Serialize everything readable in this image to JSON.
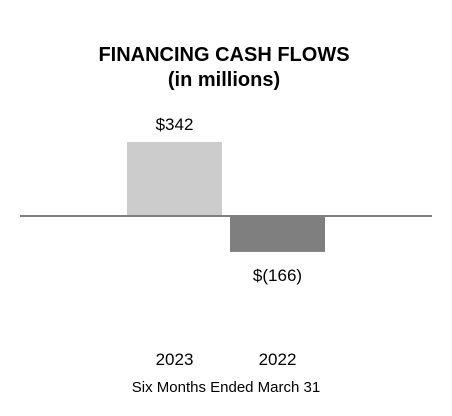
{
  "chart_data": {
    "type": "bar",
    "title": "FINANCING CASH FLOWS",
    "subtitle": "(in millions)",
    "categories": [
      "2023",
      "2022"
    ],
    "values": [
      342,
      -166
    ],
    "data_labels": [
      "$342",
      "$(166)"
    ],
    "xlabel": "Six Months Ended March 31",
    "ylabel": "",
    "ylim": [
      -166,
      342
    ],
    "grid": false,
    "legend": "none",
    "colors": {
      "positive_bar": "#cccccc",
      "negative_bar": "#7f7f7f",
      "baseline": "#808080"
    }
  }
}
